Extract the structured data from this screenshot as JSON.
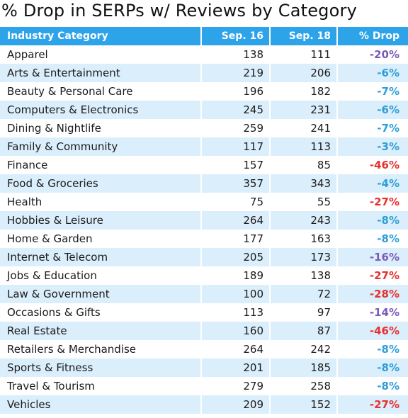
{
  "title": "% Drop in SERPs w/ Reviews by Category",
  "colors": {
    "header_bg": "#2da3ea",
    "alt_row_bg": "#dbeefb",
    "drop_small": "#2d9fd8",
    "drop_medium": "#7a5bb8",
    "drop_large": "#e8312f"
  },
  "chart_data": {
    "type": "table",
    "columns": [
      "Industry Category",
      "Sep. 16",
      "Sep. 18",
      "% Drop"
    ],
    "rows": [
      {
        "category": "Apparel",
        "sep16": "138",
        "sep18": "111",
        "drop": "-20%",
        "level": "medium"
      },
      {
        "category": "Arts & Entertainment",
        "sep16": "219",
        "sep18": "206",
        "drop": "-6%",
        "level": "small"
      },
      {
        "category": "Beauty & Personal Care",
        "sep16": "196",
        "sep18": "182",
        "drop": "-7%",
        "level": "small"
      },
      {
        "category": "Computers & Electronics",
        "sep16": "245",
        "sep18": "231",
        "drop": "-6%",
        "level": "small"
      },
      {
        "category": "Dining & Nightlife",
        "sep16": "259",
        "sep18": "241",
        "drop": "-7%",
        "level": "small"
      },
      {
        "category": "Family & Community",
        "sep16": "117",
        "sep18": "113",
        "drop": "-3%",
        "level": "small"
      },
      {
        "category": "Finance",
        "sep16": "157",
        "sep18": "85",
        "drop": "-46%",
        "level": "large"
      },
      {
        "category": "Food & Groceries",
        "sep16": "357",
        "sep18": "343",
        "drop": "-4%",
        "level": "small"
      },
      {
        "category": "Health",
        "sep16": "75",
        "sep18": "55",
        "drop": "-27%",
        "level": "large"
      },
      {
        "category": "Hobbies & Leisure",
        "sep16": "264",
        "sep18": "243",
        "drop": "-8%",
        "level": "small"
      },
      {
        "category": "Home & Garden",
        "sep16": "177",
        "sep18": "163",
        "drop": "-8%",
        "level": "small"
      },
      {
        "category": "Internet & Telecom",
        "sep16": "205",
        "sep18": "173",
        "drop": "-16%",
        "level": "medium"
      },
      {
        "category": "Jobs & Education",
        "sep16": "189",
        "sep18": "138",
        "drop": "-27%",
        "level": "large"
      },
      {
        "category": "Law & Government",
        "sep16": "100",
        "sep18": "72",
        "drop": "-28%",
        "level": "large"
      },
      {
        "category": "Occasions & Gifts",
        "sep16": "113",
        "sep18": "97",
        "drop": "-14%",
        "level": "medium"
      },
      {
        "category": "Real Estate",
        "sep16": "160",
        "sep18": "87",
        "drop": "-46%",
        "level": "large"
      },
      {
        "category": "Retailers & Merchandise",
        "sep16": "264",
        "sep18": "242",
        "drop": "-8%",
        "level": "small"
      },
      {
        "category": "Sports & Fitness",
        "sep16": "201",
        "sep18": "185",
        "drop": "-8%",
        "level": "small"
      },
      {
        "category": "Travel & Tourism",
        "sep16": "279",
        "sep18": "258",
        "drop": "-8%",
        "level": "small"
      },
      {
        "category": "Vehicles",
        "sep16": "209",
        "sep18": "152",
        "drop": "-27%",
        "level": "large"
      }
    ]
  }
}
